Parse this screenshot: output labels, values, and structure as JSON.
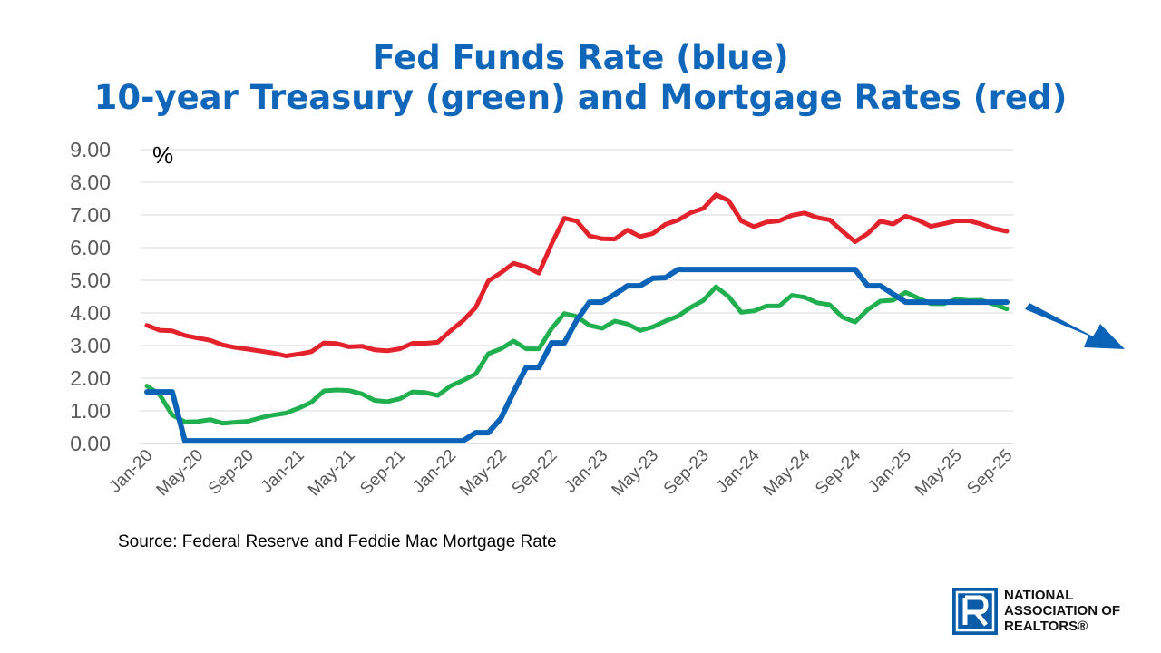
{
  "title_line1": "Fed Funds Rate (blue)",
  "title_line2": "10-year Treasury (green) and Mortgage Rates (red)",
  "source": "Source: Federal Reserve and Feddie Mac Mortgage Rate",
  "logo": {
    "line1": "NATIONAL",
    "line2": "ASSOCIATION OF",
    "line3": "REALTORS®"
  },
  "chart_data": {
    "type": "line",
    "unit_label": "%",
    "ylim": [
      0,
      9
    ],
    "y_ticks": [
      "9.00",
      "8.00",
      "7.00",
      "6.00",
      "5.00",
      "4.00",
      "3.00",
      "2.00",
      "1.00",
      "0.00"
    ],
    "y_tick_values": [
      9,
      8,
      7,
      6,
      5,
      4,
      3,
      2,
      1,
      0
    ],
    "x_tick_labels": [
      "Jan-20",
      "May-20",
      "Sep-20",
      "Jan-21",
      "May-21",
      "Sep-21",
      "Jan-22",
      "May-22",
      "Sep-22",
      "Jan-23",
      "May-23",
      "Sep-23",
      "Jan-24",
      "May-24",
      "Sep-24",
      "Jan-25",
      "May-25",
      "Sep-25"
    ],
    "grid": true,
    "legend": "none",
    "colors": {
      "fed_funds": "#0B63B8",
      "treasury": "#1FAF4E",
      "mortgage": "#E3222B",
      "arrow": "#0B63B8",
      "title": "#1066B8"
    },
    "x": [
      "Jan-20",
      "Feb-20",
      "Mar-20",
      "Apr-20",
      "May-20",
      "Jun-20",
      "Jul-20",
      "Aug-20",
      "Sep-20",
      "Oct-20",
      "Nov-20",
      "Dec-20",
      "Jan-21",
      "Feb-21",
      "Mar-21",
      "Apr-21",
      "May-21",
      "Jun-21",
      "Jul-21",
      "Aug-21",
      "Sep-21",
      "Oct-21",
      "Nov-21",
      "Dec-21",
      "Jan-22",
      "Feb-22",
      "Mar-22",
      "Apr-22",
      "May-22",
      "Jun-22",
      "Jul-22",
      "Aug-22",
      "Sep-22",
      "Oct-22",
      "Nov-22",
      "Dec-22",
      "Jan-23",
      "Feb-23",
      "Mar-23",
      "Apr-23",
      "May-23",
      "Jun-23",
      "Jul-23",
      "Aug-23",
      "Sep-23",
      "Oct-23",
      "Nov-23",
      "Dec-23",
      "Jan-24",
      "Feb-24",
      "Mar-24",
      "Apr-24",
      "May-24",
      "Jun-24",
      "Jul-24",
      "Aug-24",
      "Sep-24",
      "Oct-24",
      "Nov-24",
      "Dec-24",
      "Jan-25",
      "Feb-25",
      "Mar-25",
      "Apr-25",
      "May-25",
      "Jun-25",
      "Jul-25",
      "Aug-25",
      "Sep-25"
    ],
    "series": [
      {
        "key": "mortgage",
        "values": [
          3.62,
          3.47,
          3.45,
          3.31,
          3.23,
          3.16,
          3.02,
          2.94,
          2.89,
          2.83,
          2.77,
          2.68,
          2.74,
          2.81,
          3.08,
          3.06,
          2.96,
          2.98,
          2.87,
          2.84,
          2.9,
          3.07,
          3.07,
          3.1,
          3.45,
          3.76,
          4.17,
          4.98,
          5.23,
          5.52,
          5.41,
          5.22,
          6.11,
          6.9,
          6.81,
          6.36,
          6.27,
          6.26,
          6.54,
          6.34,
          6.43,
          6.71,
          6.84,
          7.07,
          7.2,
          7.62,
          7.44,
          6.82,
          6.64,
          6.78,
          6.82,
          6.99,
          7.06,
          6.92,
          6.85,
          6.5,
          6.18,
          6.43,
          6.81,
          6.72,
          6.96,
          6.84,
          6.65,
          6.73,
          6.82,
          6.82,
          6.72,
          6.58,
          6.5
        ]
      },
      {
        "key": "treasury",
        "values": [
          1.76,
          1.5,
          0.87,
          0.66,
          0.67,
          0.73,
          0.62,
          0.65,
          0.68,
          0.79,
          0.87,
          0.93,
          1.08,
          1.26,
          1.61,
          1.64,
          1.62,
          1.52,
          1.32,
          1.28,
          1.37,
          1.58,
          1.56,
          1.47,
          1.76,
          1.93,
          2.13,
          2.75,
          2.9,
          3.14,
          2.9,
          2.9,
          3.52,
          3.98,
          3.89,
          3.62,
          3.53,
          3.75,
          3.66,
          3.46,
          3.57,
          3.75,
          3.9,
          4.17,
          4.38,
          4.8,
          4.5,
          4.02,
          4.06,
          4.21,
          4.21,
          4.54,
          4.48,
          4.31,
          4.25,
          3.87,
          3.72,
          4.1,
          4.36,
          4.39,
          4.63,
          4.45,
          4.28,
          4.28,
          4.42,
          4.38,
          4.39,
          4.26,
          4.12
        ]
      },
      {
        "key": "fed_funds",
        "values": [
          1.58,
          1.58,
          1.58,
          0.08,
          0.08,
          0.08,
          0.08,
          0.08,
          0.08,
          0.08,
          0.08,
          0.08,
          0.08,
          0.08,
          0.08,
          0.08,
          0.08,
          0.08,
          0.08,
          0.08,
          0.08,
          0.08,
          0.08,
          0.08,
          0.08,
          0.08,
          0.33,
          0.33,
          0.77,
          1.58,
          2.33,
          2.33,
          3.08,
          3.08,
          3.78,
          4.33,
          4.33,
          4.57,
          4.83,
          4.83,
          5.06,
          5.08,
          5.33,
          5.33,
          5.33,
          5.33,
          5.33,
          5.33,
          5.33,
          5.33,
          5.33,
          5.33,
          5.33,
          5.33,
          5.33,
          5.33,
          5.33,
          4.83,
          4.83,
          4.58,
          4.33,
          4.33,
          4.33,
          4.33,
          4.33,
          4.33,
          4.33,
          4.33,
          4.33
        ]
      }
    ]
  }
}
